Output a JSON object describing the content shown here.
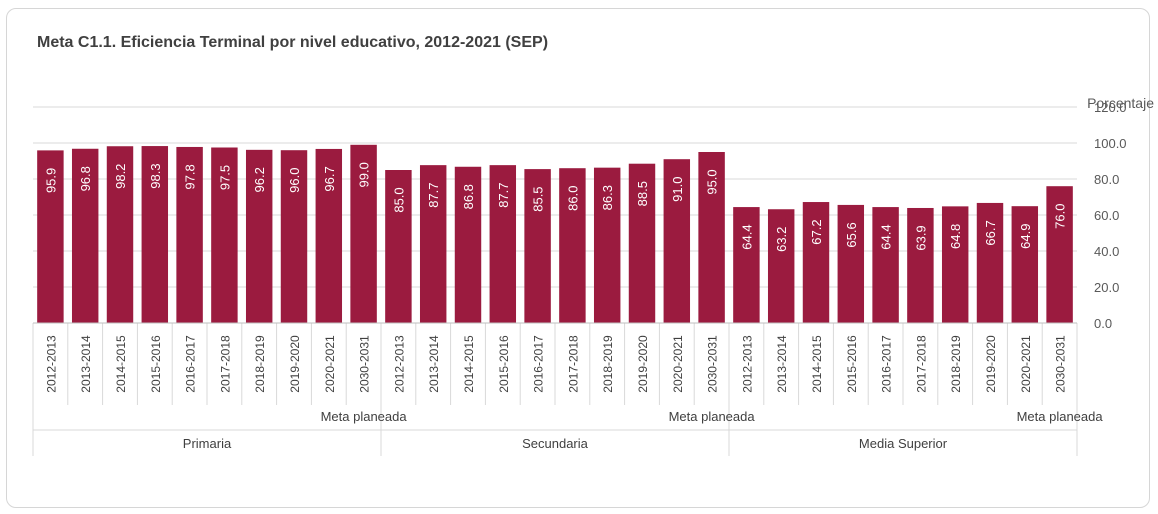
{
  "chart_data": {
    "type": "bar",
    "title": "Meta C1.1. Eficiencia Terminal por nivel educativo, 2012-2021 (SEP)",
    "ylabel": "Porcentaje",
    "ylim": [
      0,
      120
    ],
    "yticks": [
      "0.0",
      "20.0",
      "40.0",
      "60.0",
      "80.0",
      "100.0",
      "120.0"
    ],
    "grid": true,
    "bar_color": "#9b1b3f",
    "groups": [
      {
        "name": "Primaria",
        "sublabel": "Meta planeada",
        "categories": [
          "2012-2013",
          "2013-2014",
          "2014-2015",
          "2015-2016",
          "2016-2017",
          "2017-2018",
          "2018-2019",
          "2019-2020",
          "2020-2021",
          "2030-2031"
        ],
        "values": [
          95.9,
          96.8,
          98.2,
          98.3,
          97.8,
          97.5,
          96.2,
          96.0,
          96.7,
          99.0
        ],
        "value_labels": [
          "95.9",
          "96.8",
          "98.2",
          "98.3",
          "97.8",
          "97.5",
          "96.2",
          "96.0",
          "96.7",
          "99.0"
        ]
      },
      {
        "name": "Secundaria",
        "sublabel": "Meta planeada",
        "categories": [
          "2012-2013",
          "2013-2014",
          "2014-2015",
          "2015-2016",
          "2016-2017",
          "2017-2018",
          "2018-2019",
          "2019-2020",
          "2020-2021",
          "2030-2031"
        ],
        "values": [
          85.0,
          87.7,
          86.8,
          87.7,
          85.5,
          86.0,
          86.3,
          88.5,
          91.0,
          95.0
        ],
        "value_labels": [
          "85.0",
          "87.7",
          "86.8",
          "87.7",
          "85.5",
          "86.0",
          "86.3",
          "88.5",
          "91.0",
          "95.0"
        ]
      },
      {
        "name": "Media Superior",
        "sublabel": "Meta planeada",
        "categories": [
          "2012-2013",
          "2013-2014",
          "2014-2015",
          "2015-2016",
          "2016-2017",
          "2017-2018",
          "2018-2019",
          "2019-2020",
          "2020-2021",
          "2030-2031"
        ],
        "values": [
          64.4,
          63.2,
          67.2,
          65.6,
          64.4,
          63.9,
          64.8,
          66.7,
          64.9,
          76.0
        ],
        "value_labels": [
          "64.4",
          "63.2",
          "67.2",
          "65.6",
          "64.4",
          "63.9",
          "64.8",
          "66.7",
          "64.9",
          "76.0"
        ]
      }
    ]
  }
}
